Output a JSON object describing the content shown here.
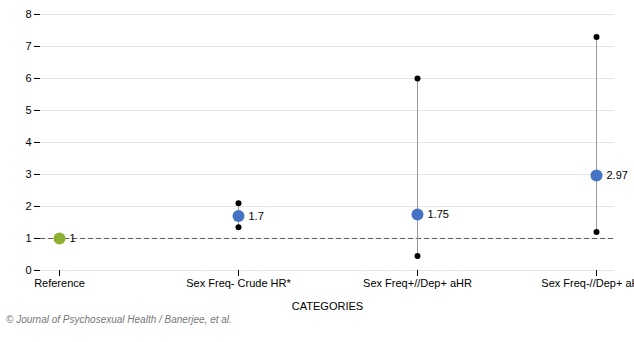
{
  "chart_data": {
    "type": "dot",
    "xlabel": "CATEGORIES",
    "caption": "© Journal of Psychosexual Health / Banerjee, et al.",
    "categories": [
      "Reference",
      "Sex Freq- Crude HR*",
      "Sex Freq+//Dep+ aHR",
      "Sex Freq-//Dep+ aHR*"
    ],
    "values": [
      1.0,
      1.7,
      1.75,
      2.97
    ],
    "upper": [
      1.0,
      2.1,
      6.0,
      7.3
    ],
    "lower": [
      1.0,
      1.35,
      0.45,
      1.2
    ],
    "colors": [
      "#8DB030",
      "#4472C4",
      "#4472C4",
      "#4472C4"
    ],
    "reference_line": 1,
    "data_labels": true,
    "grid": true,
    "ylim": [
      0,
      8
    ],
    "yticks": [
      0,
      1,
      2,
      3,
      4,
      5,
      6,
      7,
      8
    ]
  }
}
